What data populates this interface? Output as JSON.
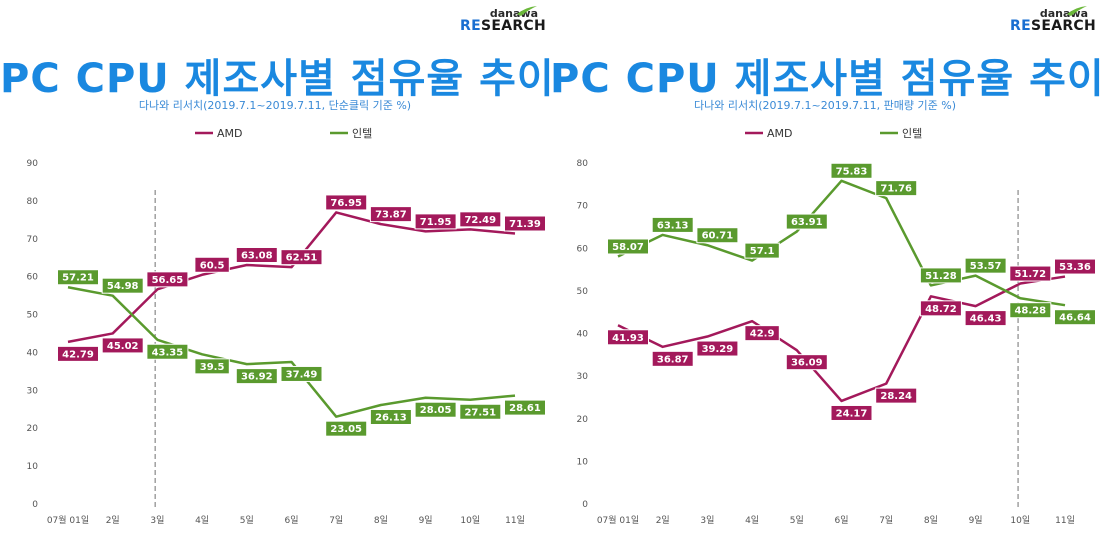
{
  "chart_data": [
    {
      "type": "line",
      "title": "PC CPU 제조사별 점유율 추이",
      "subtitle": "다나와 리서치(2019.7.1~2019.7.11, 단순클릭 기준 %)",
      "logo": {
        "top": "danawa",
        "re": "RE",
        "rest": "SEARCH"
      },
      "categories": [
        "07월 01일",
        "2일",
        "3일",
        "4일",
        "5일",
        "6일",
        "7일",
        "8일",
        "9일",
        "10일",
        "11일"
      ],
      "ylim": [
        0,
        90
      ],
      "yticks": [
        "0",
        "10",
        "20",
        "30",
        "40",
        "50",
        "60",
        "70",
        "80",
        "90"
      ],
      "divider_after_index": 2,
      "series": [
        {
          "name": "AMD",
          "color": "#a3195b",
          "values": [
            42.79,
            45.02,
            56.65,
            60.5,
            63.08,
            62.51,
            76.95,
            73.87,
            71.95,
            72.49,
            71.39
          ],
          "labels": [
            "42.79",
            "45.02",
            "56.65",
            "60.5",
            "63.08",
            "62.51",
            "76.95",
            "73.87",
            "71.95",
            "72.49",
            "71.39"
          ]
        },
        {
          "name": "인텔",
          "color": "#5a9a2e",
          "values": [
            57.21,
            54.98,
            43.35,
            39.5,
            36.92,
            37.49,
            23.05,
            26.13,
            28.05,
            27.51,
            28.61
          ],
          "labels": [
            "57.21",
            "54.98",
            "43.35",
            "39.5",
            "36.92",
            "37.49",
            "23.05",
            "26.13",
            "28.05",
            "27.51",
            "28.61"
          ]
        }
      ]
    },
    {
      "type": "line",
      "title": "PC CPU 제조사별 점유율 추이",
      "subtitle": "다나와 리서치(2019.7.1~2019.7.11, 판매량 기준 %)",
      "logo": {
        "top": "danawa",
        "re": "RE",
        "rest": "SEARCH"
      },
      "categories": [
        "07월 01일",
        "2일",
        "3일",
        "4일",
        "5일",
        "6일",
        "7일",
        "8일",
        "9일",
        "10일",
        "11일"
      ],
      "ylim": [
        0,
        80
      ],
      "yticks": [
        "0",
        "10",
        "20",
        "30",
        "40",
        "50",
        "60",
        "70",
        "80"
      ],
      "divider_after_index": 9,
      "series": [
        {
          "name": "AMD",
          "color": "#a3195b",
          "values": [
            41.93,
            36.87,
            39.29,
            42.9,
            36.09,
            24.17,
            28.24,
            48.72,
            46.43,
            51.72,
            53.36
          ],
          "labels": [
            "41.93",
            "36.87",
            "39.29",
            "42.9",
            "36.09",
            "24.17",
            "28.24",
            "48.72",
            "46.43",
            "51.72",
            "53.36"
          ]
        },
        {
          "name": "인텔",
          "color": "#5a9a2e",
          "values": [
            58.07,
            63.13,
            60.71,
            57.1,
            63.91,
            75.83,
            71.76,
            51.28,
            53.57,
            48.28,
            46.64
          ],
          "labels": [
            "58.07",
            "63.13",
            "60.71",
            "57.1",
            "63.91",
            "75.83",
            "71.76",
            "51.28",
            "53.57",
            "48.28",
            "46.64"
          ]
        }
      ]
    }
  ]
}
